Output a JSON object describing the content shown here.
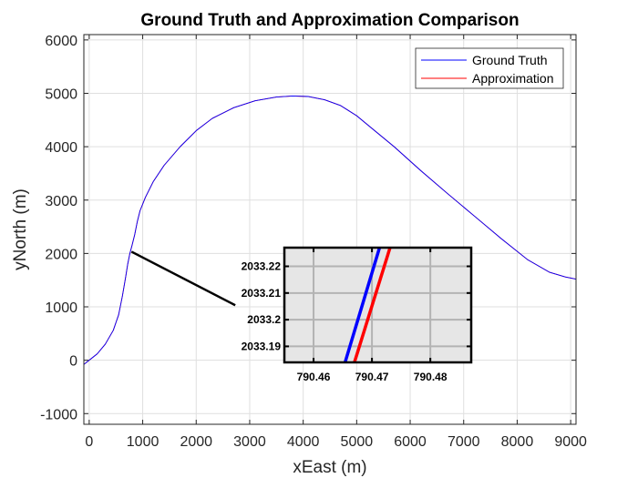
{
  "chart_data": {
    "type": "line",
    "title": "Ground Truth and Approximation Comparison",
    "xlabel": "xEast (m)",
    "ylabel": "yNorth (m)",
    "xlim": [
      -100,
      9100
    ],
    "ylim": [
      -1200,
      6100
    ],
    "xticks": [
      0,
      1000,
      2000,
      3000,
      4000,
      5000,
      6000,
      7000,
      8000,
      9000
    ],
    "yticks": [
      -1000,
      0,
      1000,
      2000,
      3000,
      4000,
      5000,
      6000
    ],
    "grid": true,
    "legend_position": "top-right",
    "series": [
      {
        "name": "Ground Truth",
        "color": "#0000ff",
        "x": [
          -100,
          0,
          150,
          300,
          450,
          550,
          620,
          680,
          720,
          760,
          800,
          850,
          900,
          950,
          1050,
          1200,
          1400,
          1700,
          2000,
          2300,
          2700,
          3100,
          3500,
          3800,
          4100,
          4400,
          4700,
          5000,
          5300,
          5700,
          6200,
          6700,
          7200,
          7700,
          8200,
          8600,
          8900,
          9100
        ],
        "y": [
          -80,
          0,
          120,
          300,
          560,
          850,
          1200,
          1550,
          1800,
          2000,
          2150,
          2350,
          2600,
          2800,
          3050,
          3350,
          3650,
          4000,
          4300,
          4530,
          4730,
          4860,
          4930,
          4950,
          4940,
          4880,
          4770,
          4580,
          4330,
          4000,
          3550,
          3120,
          2700,
          2280,
          1880,
          1650,
          1560,
          1520
        ]
      },
      {
        "name": "Approximation",
        "color": "#ff0000",
        "x": [
          -100,
          0,
          150,
          300,
          450,
          550,
          620,
          680,
          720,
          760,
          800,
          850,
          900,
          950,
          1050,
          1200,
          1400,
          1700,
          2000,
          2300,
          2700,
          3100,
          3500,
          3800,
          4100,
          4400,
          4700,
          5000,
          5300,
          5700,
          6200,
          6700,
          7200,
          7700,
          8200,
          8600,
          8900,
          9100
        ],
        "y": [
          -80,
          0,
          120,
          300,
          560,
          850,
          1200,
          1550,
          1800,
          2000,
          2150,
          2350,
          2600,
          2800,
          3050,
          3350,
          3650,
          4000,
          4300,
          4530,
          4730,
          4860,
          4930,
          4950,
          4940,
          4880,
          4770,
          4580,
          4330,
          4000,
          3550,
          3120,
          2700,
          2280,
          1880,
          1650,
          1560,
          1520
        ]
      }
    ],
    "zoom_anchor": {
      "x": 790.47,
      "y": 2033.2
    },
    "zoom_line_end": {
      "x": 2730,
      "y": 1030
    },
    "inset": {
      "xlim": [
        790.455,
        790.487
      ],
      "ylim": [
        2033.184,
        2033.227
      ],
      "xticks": [
        790.46,
        790.47,
        790.48
      ],
      "xtick_labels": [
        "790.46",
        "790.47",
        "790.48"
      ],
      "yticks": [
        2033.19,
        2033.2,
        2033.21,
        2033.22
      ],
      "ytick_labels": [
        "2033.19",
        "2033.2",
        "2033.21",
        "2033.22"
      ],
      "series": [
        {
          "name": "Ground Truth",
          "color": "#0000ff",
          "x": [
            790.4654,
            790.4713
          ],
          "y": [
            2033.184,
            2033.227
          ]
        },
        {
          "name": "Approximation",
          "color": "#ff0000",
          "x": [
            790.467,
            790.4731
          ],
          "y": [
            2033.184,
            2033.227
          ]
        }
      ]
    }
  }
}
